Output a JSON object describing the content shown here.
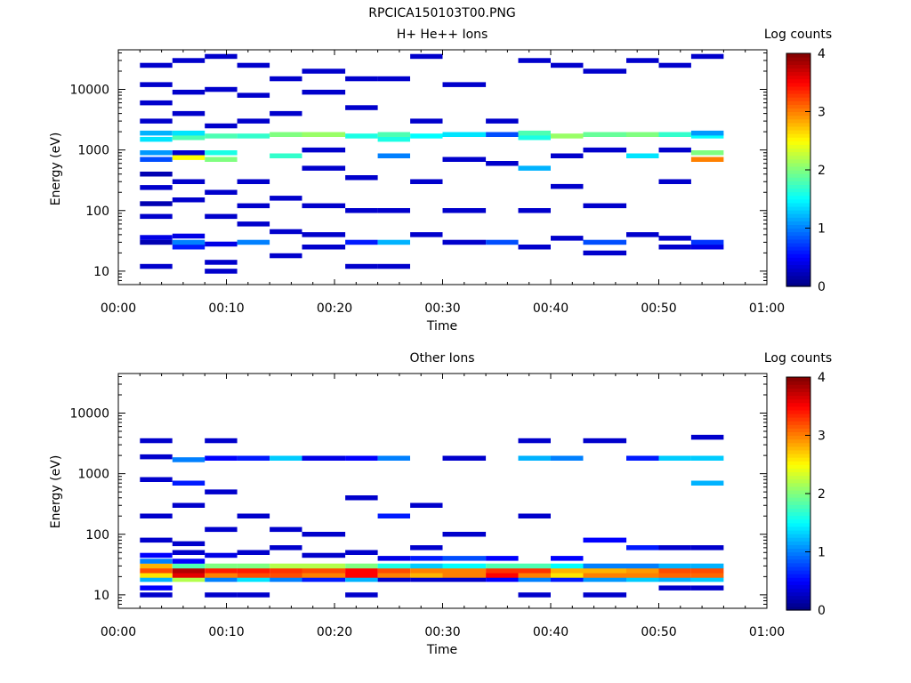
{
  "figure_title": "RPCICA150103T00.PNG",
  "chart_data": [
    {
      "type": "heatmap",
      "title": "H+ He++ Ions",
      "xlabel": "Time",
      "ylabel": "Energy (eV)",
      "colorbar_label": "Log counts",
      "x_range_minutes": [
        0,
        60
      ],
      "x_ticks": [
        "00:00",
        "00:10",
        "00:20",
        "00:30",
        "00:40",
        "00:50",
        "01:00"
      ],
      "y_scale": "log",
      "y_range_eV": [
        6,
        45000
      ],
      "y_ticks": [
        "10",
        "100",
        "1000",
        "10000"
      ],
      "colorbar_range": [
        0,
        4
      ],
      "colorbar_ticks": [
        "0",
        "1",
        "2",
        "3",
        "4"
      ],
      "time_bins_minutes": [
        [
          2,
          5
        ],
        [
          5,
          8
        ],
        [
          8,
          11
        ],
        [
          11,
          14
        ],
        [
          14,
          17
        ],
        [
          17,
          21
        ],
        [
          21,
          24
        ],
        [
          24,
          27
        ],
        [
          27,
          30
        ],
        [
          30,
          34
        ],
        [
          34,
          37
        ],
        [
          37,
          40
        ],
        [
          40,
          43
        ],
        [
          43,
          47
        ],
        [
          47,
          50
        ],
        [
          50,
          53
        ],
        [
          53,
          56
        ]
      ],
      "cells": [
        [
          0,
          12,
          0.3
        ],
        [
          0,
          30,
          0.2
        ],
        [
          0,
          36,
          0.4
        ],
        [
          0,
          80,
          0.3
        ],
        [
          0,
          130,
          0.2
        ],
        [
          0,
          240,
          0.3
        ],
        [
          0,
          400,
          0.2
        ],
        [
          0,
          700,
          0.8
        ],
        [
          0,
          900,
          1.1
        ],
        [
          0,
          1500,
          1.4
        ],
        [
          0,
          1900,
          1.2
        ],
        [
          0,
          3000,
          0.3
        ],
        [
          0,
          6000,
          0.3
        ],
        [
          0,
          12000,
          0.3
        ],
        [
          0,
          25000,
          0.3
        ],
        [
          1,
          25,
          0.6
        ],
        [
          1,
          30,
          1.0
        ],
        [
          1,
          38,
          0.4
        ],
        [
          1,
          150,
          0.3
        ],
        [
          1,
          300,
          0.3
        ],
        [
          1,
          750,
          2.5
        ],
        [
          1,
          900,
          0.3
        ],
        [
          1,
          1600,
          1.8
        ],
        [
          1,
          1900,
          1.4
        ],
        [
          1,
          4000,
          0.3
        ],
        [
          1,
          9000,
          0.3
        ],
        [
          1,
          30000,
          0.3
        ],
        [
          2,
          10,
          0.3
        ],
        [
          2,
          14,
          0.3
        ],
        [
          2,
          28,
          0.4
        ],
        [
          2,
          80,
          0.3
        ],
        [
          2,
          200,
          0.3
        ],
        [
          2,
          700,
          2.0
        ],
        [
          2,
          900,
          1.6
        ],
        [
          2,
          1700,
          1.8
        ],
        [
          2,
          2500,
          0.3
        ],
        [
          2,
          10000,
          0.3
        ],
        [
          2,
          35000,
          0.3
        ],
        [
          3,
          30,
          1.0
        ],
        [
          3,
          60,
          0.3
        ],
        [
          3,
          120,
          0.3
        ],
        [
          3,
          300,
          0.3
        ],
        [
          3,
          1700,
          1.7
        ],
        [
          3,
          3000,
          0.3
        ],
        [
          3,
          8000,
          0.3
        ],
        [
          3,
          25000,
          0.3
        ],
        [
          4,
          18,
          0.3
        ],
        [
          4,
          45,
          0.3
        ],
        [
          4,
          160,
          0.3
        ],
        [
          4,
          800,
          1.7
        ],
        [
          4,
          1800,
          2.0
        ],
        [
          4,
          4000,
          0.3
        ],
        [
          4,
          15000,
          0.3
        ],
        [
          5,
          25,
          0.3
        ],
        [
          5,
          40,
          0.3
        ],
        [
          5,
          120,
          0.3
        ],
        [
          5,
          500,
          0.3
        ],
        [
          5,
          1000,
          0.3
        ],
        [
          5,
          1800,
          2.1
        ],
        [
          5,
          9000,
          0.3
        ],
        [
          5,
          20000,
          0.3
        ],
        [
          6,
          12,
          0.3
        ],
        [
          6,
          30,
          0.6
        ],
        [
          6,
          100,
          0.3
        ],
        [
          6,
          350,
          0.3
        ],
        [
          6,
          1700,
          1.6
        ],
        [
          6,
          5000,
          0.3
        ],
        [
          6,
          15000,
          0.3
        ],
        [
          7,
          12,
          0.3
        ],
        [
          7,
          30,
          1.2
        ],
        [
          7,
          100,
          0.3
        ],
        [
          7,
          800,
          1.0
        ],
        [
          7,
          1500,
          1.6
        ],
        [
          7,
          1800,
          1.8
        ],
        [
          7,
          15000,
          0.3
        ],
        [
          8,
          40,
          0.3
        ],
        [
          8,
          300,
          0.3
        ],
        [
          8,
          1700,
          1.5
        ],
        [
          8,
          3000,
          0.3
        ],
        [
          8,
          35000,
          0.3
        ],
        [
          9,
          30,
          0.3
        ],
        [
          9,
          100,
          0.3
        ],
        [
          9,
          700,
          0.3
        ],
        [
          9,
          1800,
          1.4
        ],
        [
          9,
          12000,
          0.3
        ],
        [
          10,
          30,
          0.8
        ],
        [
          10,
          600,
          0.3
        ],
        [
          10,
          1800,
          0.8
        ],
        [
          10,
          3000,
          0.3
        ],
        [
          11,
          25,
          0.3
        ],
        [
          11,
          100,
          0.3
        ],
        [
          11,
          500,
          1.2
        ],
        [
          11,
          1600,
          1.6
        ],
        [
          11,
          1900,
          1.8
        ],
        [
          11,
          30000,
          0.3
        ],
        [
          12,
          35,
          0.3
        ],
        [
          12,
          250,
          0.3
        ],
        [
          12,
          800,
          0.3
        ],
        [
          12,
          1700,
          2.1
        ],
        [
          12,
          25000,
          0.3
        ],
        [
          13,
          20,
          0.3
        ],
        [
          13,
          30,
          0.8
        ],
        [
          13,
          120,
          0.3
        ],
        [
          13,
          1000,
          0.3
        ],
        [
          13,
          1800,
          1.9
        ],
        [
          13,
          20000,
          0.3
        ],
        [
          14,
          40,
          0.3
        ],
        [
          14,
          800,
          1.4
        ],
        [
          14,
          1800,
          2.0
        ],
        [
          14,
          30000,
          0.3
        ],
        [
          15,
          25,
          0.3
        ],
        [
          15,
          35,
          0.3
        ],
        [
          15,
          300,
          0.3
        ],
        [
          15,
          1000,
          0.3
        ],
        [
          15,
          1800,
          1.7
        ],
        [
          15,
          25000,
          0.3
        ],
        [
          16,
          25,
          0.4
        ],
        [
          16,
          30,
          0.7
        ],
        [
          16,
          700,
          3.0
        ],
        [
          16,
          900,
          2.0
        ],
        [
          16,
          1700,
          1.5
        ],
        [
          16,
          1900,
          1.1
        ],
        [
          16,
          35000,
          0.3
        ]
      ]
    },
    {
      "type": "heatmap",
      "title": "Other Ions",
      "xlabel": "Time",
      "ylabel": "Energy (eV)",
      "colorbar_label": "Log counts",
      "x_range_minutes": [
        0,
        60
      ],
      "x_ticks": [
        "00:00",
        "00:10",
        "00:20",
        "00:30",
        "00:40",
        "00:50",
        "01:00"
      ],
      "y_scale": "log",
      "y_range_eV": [
        6,
        45000
      ],
      "y_ticks": [
        "10",
        "100",
        "1000",
        "10000"
      ],
      "colorbar_range": [
        0,
        4
      ],
      "colorbar_ticks": [
        "0",
        "1",
        "2",
        "3",
        "4"
      ],
      "time_bins_minutes": [
        [
          2,
          5
        ],
        [
          5,
          8
        ],
        [
          8,
          11
        ],
        [
          11,
          14
        ],
        [
          14,
          17
        ],
        [
          17,
          21
        ],
        [
          21,
          24
        ],
        [
          24,
          27
        ],
        [
          27,
          30
        ],
        [
          30,
          34
        ],
        [
          34,
          37
        ],
        [
          37,
          40
        ],
        [
          40,
          43
        ],
        [
          43,
          47
        ],
        [
          47,
          50
        ],
        [
          50,
          53
        ],
        [
          53,
          56
        ]
      ],
      "cells": [
        [
          0,
          10,
          0.3
        ],
        [
          0,
          13,
          0.5
        ],
        [
          0,
          18,
          1.2
        ],
        [
          0,
          21,
          2.6
        ],
        [
          0,
          25,
          3.2
        ],
        [
          0,
          30,
          2.8
        ],
        [
          0,
          36,
          1.0
        ],
        [
          0,
          45,
          0.5
        ],
        [
          0,
          80,
          0.3
        ],
        [
          0,
          200,
          0.3
        ],
        [
          0,
          800,
          0.3
        ],
        [
          0,
          1900,
          0.3
        ],
        [
          0,
          3500,
          0.3
        ],
        [
          1,
          18,
          2.2
        ],
        [
          1,
          21,
          3.6
        ],
        [
          1,
          25,
          3.8
        ],
        [
          1,
          30,
          1.8
        ],
        [
          1,
          36,
          0.5
        ],
        [
          1,
          50,
          0.3
        ],
        [
          1,
          70,
          0.3
        ],
        [
          1,
          300,
          0.3
        ],
        [
          1,
          700,
          0.6
        ],
        [
          1,
          1700,
          1.0
        ],
        [
          2,
          10,
          0.3
        ],
        [
          2,
          18,
          1.0
        ],
        [
          2,
          21,
          3.0
        ],
        [
          2,
          25,
          3.4
        ],
        [
          2,
          30,
          2.0
        ],
        [
          2,
          45,
          0.4
        ],
        [
          2,
          120,
          0.3
        ],
        [
          2,
          500,
          0.3
        ],
        [
          2,
          1800,
          0.5
        ],
        [
          2,
          3500,
          0.3
        ],
        [
          3,
          10,
          0.3
        ],
        [
          3,
          18,
          1.4
        ],
        [
          3,
          21,
          3.2
        ],
        [
          3,
          25,
          3.4
        ],
        [
          3,
          30,
          2.0
        ],
        [
          3,
          50,
          0.3
        ],
        [
          3,
          200,
          0.3
        ],
        [
          3,
          1800,
          0.6
        ],
        [
          4,
          18,
          1.0
        ],
        [
          4,
          21,
          3.2
        ],
        [
          4,
          25,
          3.3
        ],
        [
          4,
          30,
          2.2
        ],
        [
          4,
          60,
          0.3
        ],
        [
          4,
          120,
          0.3
        ],
        [
          4,
          1800,
          1.3
        ],
        [
          5,
          18,
          0.6
        ],
        [
          5,
          21,
          3.0
        ],
        [
          5,
          25,
          3.2
        ],
        [
          5,
          30,
          2.2
        ],
        [
          5,
          45,
          0.3
        ],
        [
          5,
          100,
          0.3
        ],
        [
          5,
          1800,
          0.4
        ],
        [
          6,
          10,
          0.3
        ],
        [
          6,
          18,
          1.2
        ],
        [
          6,
          21,
          3.5
        ],
        [
          6,
          25,
          3.5
        ],
        [
          6,
          30,
          2.0
        ],
        [
          6,
          50,
          0.3
        ],
        [
          6,
          400,
          0.3
        ],
        [
          6,
          1800,
          0.5
        ],
        [
          7,
          18,
          0.3
        ],
        [
          7,
          21,
          3.0
        ],
        [
          7,
          25,
          3.2
        ],
        [
          7,
          30,
          1.6
        ],
        [
          7,
          40,
          0.4
        ],
        [
          7,
          200,
          0.6
        ],
        [
          7,
          1800,
          1.0
        ],
        [
          8,
          18,
          0.3
        ],
        [
          8,
          21,
          2.8
        ],
        [
          8,
          25,
          3.0
        ],
        [
          8,
          30,
          1.3
        ],
        [
          8,
          40,
          0.6
        ],
        [
          8,
          60,
          0.3
        ],
        [
          8,
          300,
          0.3
        ],
        [
          9,
          18,
          0.3
        ],
        [
          9,
          21,
          3.0
        ],
        [
          9,
          25,
          3.0
        ],
        [
          9,
          30,
          1.5
        ],
        [
          9,
          40,
          0.8
        ],
        [
          9,
          100,
          0.3
        ],
        [
          9,
          1800,
          0.3
        ],
        [
          10,
          18,
          0.5
        ],
        [
          10,
          21,
          3.5
        ],
        [
          10,
          25,
          3.3
        ],
        [
          10,
          30,
          1.8
        ],
        [
          10,
          40,
          0.5
        ],
        [
          11,
          10,
          0.3
        ],
        [
          11,
          18,
          1.0
        ],
        [
          11,
          21,
          3.0
        ],
        [
          11,
          25,
          3.3
        ],
        [
          11,
          30,
          1.8
        ],
        [
          11,
          200,
          0.3
        ],
        [
          11,
          1800,
          1.2
        ],
        [
          11,
          3500,
          0.3
        ],
        [
          12,
          18,
          0.6
        ],
        [
          12,
          21,
          2.6
        ],
        [
          12,
          25,
          2.8
        ],
        [
          12,
          30,
          1.5
        ],
        [
          12,
          40,
          0.5
        ],
        [
          12,
          1800,
          1.0
        ],
        [
          13,
          10,
          0.3
        ],
        [
          13,
          18,
          1.1
        ],
        [
          13,
          21,
          3.0
        ],
        [
          13,
          25,
          2.8
        ],
        [
          13,
          30,
          1.0
        ],
        [
          13,
          80,
          0.5
        ],
        [
          13,
          3500,
          0.3
        ],
        [
          14,
          18,
          1.3
        ],
        [
          14,
          21,
          3.0
        ],
        [
          14,
          25,
          2.9
        ],
        [
          14,
          30,
          1.0
        ],
        [
          14,
          60,
          0.6
        ],
        [
          14,
          1800,
          0.6
        ],
        [
          15,
          13,
          0.3
        ],
        [
          15,
          18,
          1.2
        ],
        [
          15,
          21,
          3.1
        ],
        [
          15,
          25,
          3.2
        ],
        [
          15,
          30,
          1.2
        ],
        [
          15,
          60,
          0.3
        ],
        [
          15,
          1800,
          1.3
        ],
        [
          16,
          13,
          0.3
        ],
        [
          16,
          18,
          1.3
        ],
        [
          16,
          21,
          3.1
        ],
        [
          16,
          25,
          3.2
        ],
        [
          16,
          30,
          1.2
        ],
        [
          16,
          60,
          0.3
        ],
        [
          16,
          700,
          1.2
        ],
        [
          16,
          1800,
          1.3
        ],
        [
          16,
          4000,
          0.3
        ]
      ]
    }
  ]
}
